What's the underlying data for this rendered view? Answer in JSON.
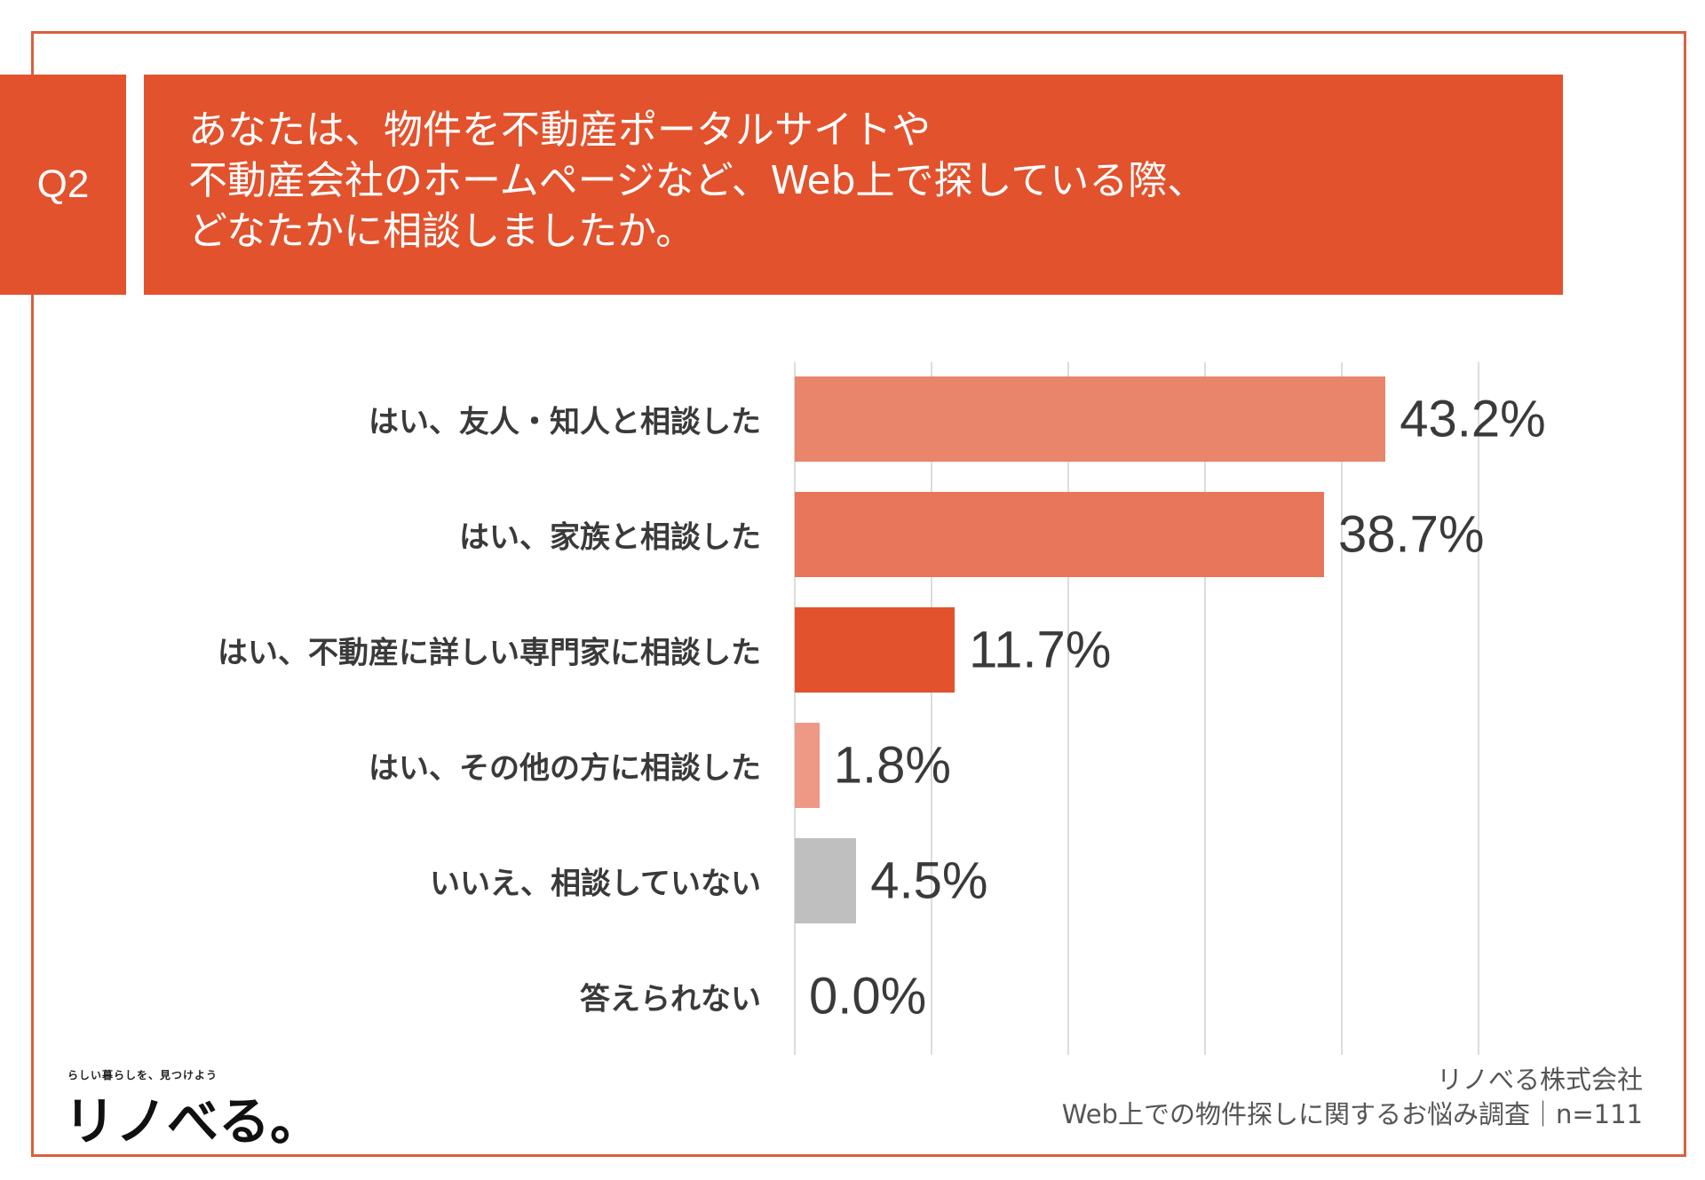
{
  "question": {
    "badge": "Q2",
    "lines": [
      "あなたは、物件を不動産ポータルサイトや",
      "不動産会社のホームページなど、Web上で探している際、",
      "どなたかに相談しましたか。"
    ]
  },
  "colors": {
    "accent": "#e2522d",
    "frame": "#d9603f"
  },
  "chart_data": {
    "type": "bar",
    "orientation": "horizontal",
    "title": "あなたは、物件を不動産ポータルサイトや不動産会社のホームページなど、Web上で探している際、どなたかに相談しましたか。",
    "categories": [
      "はい、友人・知人と相談した",
      "はい、家族と相談した",
      "はい、不動産に詳しい専門家に相談した",
      "はい、その他の方に相談した",
      "いいえ、相談していない",
      "答えられない"
    ],
    "values": [
      43.2,
      38.7,
      11.7,
      1.8,
      4.5,
      0.0
    ],
    "value_labels": [
      "43.2%",
      "38.7%",
      "11.7%",
      "1.8%",
      "4.5%",
      "0.0%"
    ],
    "bar_colors": [
      "#e9856a",
      "#e8765a",
      "#e2522d",
      "#ee9985",
      "#bfbfbf",
      "#bfbfbf"
    ],
    "xlim": [
      0,
      50
    ],
    "xticks": [
      0,
      10,
      20,
      30,
      40,
      50
    ],
    "grid": true,
    "xlabel": "",
    "ylabel": ""
  },
  "footer": {
    "company": "リノべる株式会社",
    "survey": "Web上での物件探しに関するお悩み調査｜n=111"
  },
  "logo": {
    "tagline": "らしい暮らしを、見つけよう",
    "name": "リノべる。"
  }
}
